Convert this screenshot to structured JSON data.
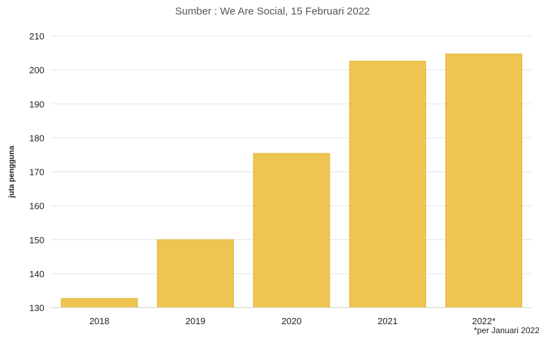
{
  "chart_data": {
    "type": "bar",
    "title": "Sumber : We Are Social, 15 Februari 2022",
    "ylabel": "juta pengguna",
    "xlabel": "",
    "categories": [
      "2018",
      "2019",
      "2020",
      "2021",
      "2022*"
    ],
    "values": [
      132.7,
      150,
      175.4,
      202.6,
      204.7
    ],
    "ylim": [
      130,
      210
    ],
    "yticks": [
      "130",
      "140",
      "150",
      "160",
      "170",
      "180",
      "190",
      "200",
      "210"
    ],
    "grid": true,
    "bar_color": "#EEC550",
    "bar_stroke": "#E2B53D",
    "footnote": "*per Januari 2022"
  }
}
